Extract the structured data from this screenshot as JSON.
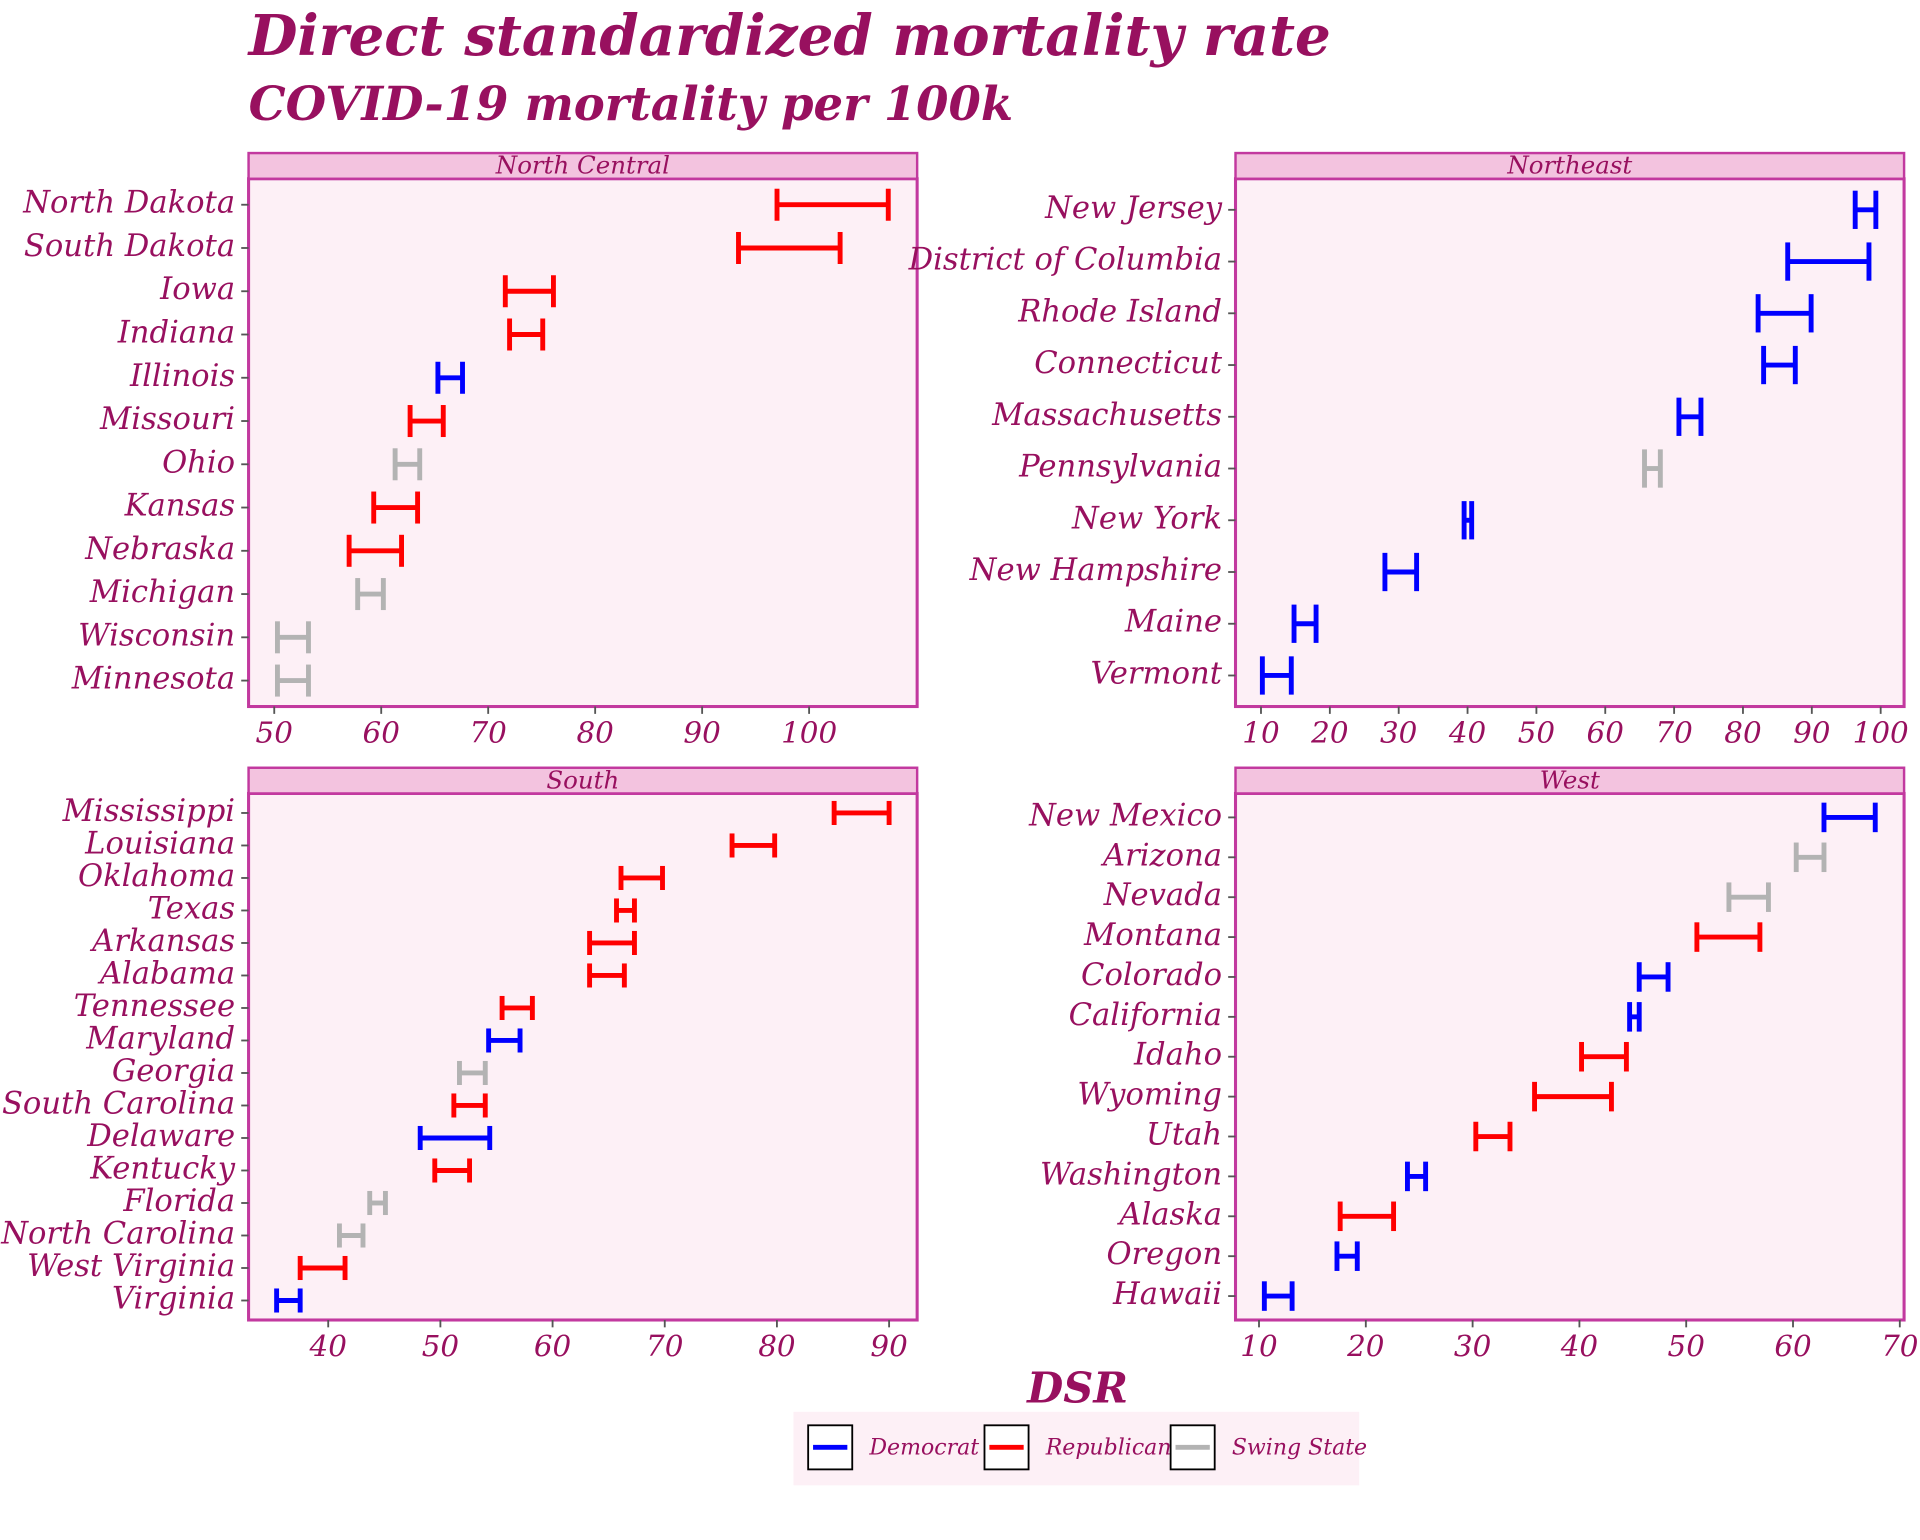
{
  "title": "Direct standardized mortality rate",
  "subtitle": "COVID-19 mortality per 100k",
  "x_label": "DSR",
  "legend": [
    {
      "name": "Democrat",
      "color": "#0000ff"
    },
    {
      "name": "Republican",
      "color": "#ff0000"
    },
    {
      "name": "Swing State",
      "color": "#b3b3b3"
    }
  ],
  "chart_data": [
    {
      "type": "errorbar",
      "title": "North Central",
      "categories": [
        "North Dakota",
        "South Dakota",
        "Iowa",
        "Indiana",
        "Illinois",
        "Missouri",
        "Ohio",
        "Kansas",
        "Nebraska",
        "Michigan",
        "Wisconsin",
        "Minnesota"
      ],
      "series": [
        {
          "color": "#0000ff",
          "lower": [
            null,
            null,
            null,
            null,
            65.3,
            null,
            null,
            null,
            null,
            null,
            null,
            null
          ],
          "upper": [
            null,
            null,
            null,
            null,
            67.6,
            null,
            null,
            null,
            null,
            null,
            null,
            null
          ]
        },
        {
          "color": "#ff0000",
          "lower": [
            97.0,
            93.4,
            71.6,
            72.0,
            null,
            62.7,
            null,
            59.3,
            57.0,
            null,
            null,
            null
          ],
          "upper": [
            107.4,
            102.9,
            76.1,
            75.1,
            null,
            65.8,
            null,
            63.4,
            61.9,
            null,
            null,
            null
          ]
        },
        {
          "color": "#b3b3b3",
          "lower": [
            null,
            null,
            null,
            null,
            null,
            null,
            61.3,
            null,
            null,
            57.8,
            50.3,
            50.3
          ],
          "upper": [
            null,
            null,
            null,
            null,
            null,
            null,
            63.6,
            null,
            null,
            60.2,
            53.2,
            53.2
          ]
        }
      ],
      "xlim": [
        47.6,
        110.1
      ],
      "xticks": [
        50,
        60,
        70,
        80,
        90,
        100
      ]
    },
    {
      "type": "errorbar",
      "title": "Northeast",
      "categories": [
        "New Jersey",
        "District of Columbia",
        "Rhode Island",
        "Connecticut",
        "Massachusetts",
        "Pennsylvania",
        "New York",
        "New Hampshire",
        "Maine",
        "Vermont"
      ],
      "series": [
        {
          "color": "#0000ff",
          "lower": [
            96.3,
            86.5,
            82.2,
            83.0,
            70.7,
            null,
            39.5,
            28.0,
            14.8,
            10.2
          ],
          "upper": [
            99.3,
            98.3,
            89.9,
            87.6,
            73.9,
            null,
            40.6,
            32.6,
            18.0,
            14.4
          ]
        },
        {
          "color": "#b3b3b3",
          "lower": [
            null,
            null,
            null,
            null,
            null,
            65.7,
            null,
            null,
            null,
            null
          ],
          "upper": [
            null,
            null,
            null,
            null,
            null,
            68.0,
            null,
            null,
            null,
            null
          ]
        }
      ],
      "xlim": [
        6.3,
        103.4
      ],
      "xticks": [
        10,
        20,
        30,
        40,
        50,
        60,
        70,
        80,
        90,
        100
      ]
    },
    {
      "type": "errorbar",
      "title": "South",
      "categories": [
        "Mississippi",
        "Louisiana",
        "Oklahoma",
        "Texas",
        "Arkansas",
        "Alabama",
        "Tennessee",
        "Maryland",
        "Georgia",
        "South Carolina",
        "Delaware",
        "Kentucky",
        "Florida",
        "North Carolina",
        "West Virginia",
        "Virginia"
      ],
      "series": [
        {
          "color": "#0000ff",
          "lower": [
            null,
            null,
            null,
            null,
            null,
            null,
            null,
            54.3,
            null,
            null,
            48.2,
            null,
            null,
            null,
            null,
            35.4
          ],
          "upper": [
            null,
            null,
            null,
            null,
            null,
            null,
            null,
            57.1,
            null,
            null,
            54.4,
            null,
            null,
            null,
            null,
            37.5
          ]
        },
        {
          "color": "#ff0000",
          "lower": [
            85.1,
            76.0,
            66.1,
            65.7,
            63.3,
            63.3,
            55.5,
            null,
            null,
            51.2,
            null,
            49.5,
            null,
            null,
            37.5,
            null
          ],
          "upper": [
            90.0,
            79.8,
            69.8,
            67.3,
            67.3,
            66.4,
            58.2,
            null,
            null,
            54.0,
            null,
            52.6,
            null,
            null,
            41.5,
            null
          ]
        },
        {
          "color": "#b3b3b3",
          "lower": [
            null,
            null,
            null,
            null,
            null,
            null,
            null,
            null,
            51.7,
            null,
            null,
            null,
            43.7,
            41.0,
            null,
            null
          ],
          "upper": [
            null,
            null,
            null,
            null,
            null,
            null,
            null,
            null,
            54.0,
            null,
            null,
            null,
            45.1,
            43.1,
            null,
            null
          ]
        }
      ],
      "xlim": [
        32.9,
        92.5
      ],
      "xticks": [
        40,
        50,
        60,
        70,
        80,
        90
      ]
    },
    {
      "type": "errorbar",
      "title": "West",
      "categories": [
        "New Mexico",
        "Arizona",
        "Nevada",
        "Montana",
        "Colorado",
        "California",
        "Idaho",
        "Wyoming",
        "Utah",
        "Washington",
        "Alaska",
        "Oregon",
        "Hawaii"
      ],
      "series": [
        {
          "color": "#0000ff",
          "lower": [
            62.9,
            null,
            null,
            null,
            45.6,
            44.7,
            null,
            null,
            null,
            23.9,
            null,
            17.3,
            10.5
          ],
          "upper": [
            67.7,
            null,
            null,
            null,
            48.3,
            45.6,
            null,
            null,
            null,
            25.6,
            null,
            19.2,
            13.1
          ]
        },
        {
          "color": "#ff0000",
          "lower": [
            null,
            null,
            null,
            51.0,
            null,
            null,
            40.2,
            35.8,
            30.3,
            null,
            17.6,
            null,
            null
          ],
          "upper": [
            null,
            null,
            null,
            56.9,
            null,
            null,
            44.4,
            43.0,
            33.5,
            null,
            22.6,
            null,
            null
          ]
        },
        {
          "color": "#b3b3b3",
          "lower": [
            null,
            60.3,
            54.0,
            null,
            null,
            null,
            null,
            null,
            null,
            null,
            null,
            null,
            null
          ],
          "upper": [
            null,
            62.9,
            57.7,
            null,
            null,
            null,
            null,
            null,
            null,
            null,
            null,
            null,
            null
          ]
        }
      ],
      "xlim": [
        7.8,
        70.4
      ],
      "xticks": [
        10,
        20,
        30,
        40,
        50,
        60,
        70
      ]
    }
  ]
}
